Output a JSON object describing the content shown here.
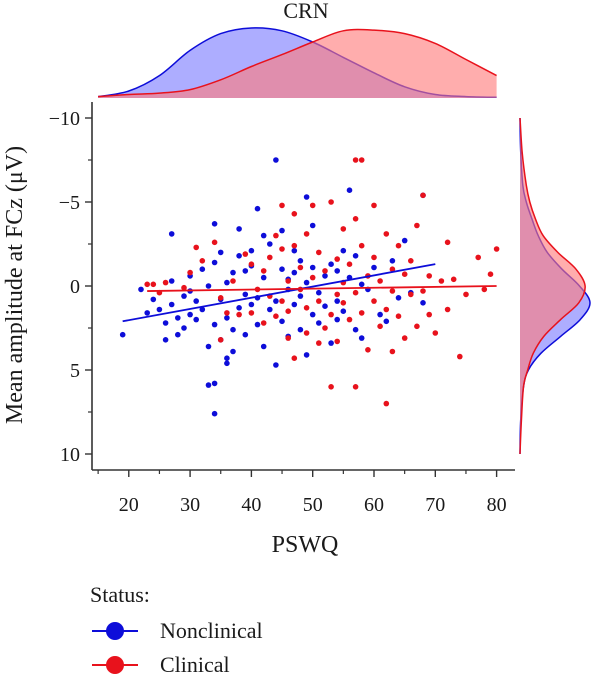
{
  "chart_data": {
    "type": "scatter",
    "title": "CRN",
    "xlabel": "PSWQ",
    "ylabel": "Mean amplitude at FCz (μV)",
    "xlim": [
      14,
      83
    ],
    "ylim": [
      10,
      -10
    ],
    "y_inverted": true,
    "xticks": [
      20,
      30,
      40,
      50,
      60,
      70,
      80
    ],
    "yticks": [
      -10,
      -5,
      0,
      5,
      10
    ],
    "series": [
      {
        "name": "Nonclinical",
        "color": "#0d0dd9",
        "fill": "#7a7aff",
        "points": [
          [
            19,
            2.9
          ],
          [
            22,
            0.2
          ],
          [
            23,
            1.6
          ],
          [
            24,
            0.8
          ],
          [
            25,
            1.4
          ],
          [
            26,
            3.2
          ],
          [
            26,
            2.2
          ],
          [
            27,
            -0.3
          ],
          [
            27,
            1.1
          ],
          [
            27,
            -3.1
          ],
          [
            28,
            1.9
          ],
          [
            28,
            2.9
          ],
          [
            29,
            0.6
          ],
          [
            29,
            2.5
          ],
          [
            30,
            0.3
          ],
          [
            30,
            1.7
          ],
          [
            30,
            -0.6
          ],
          [
            31,
            2.0
          ],
          [
            31,
            0.9
          ],
          [
            32,
            -1.0
          ],
          [
            32,
            1.4
          ],
          [
            33,
            0.0
          ],
          [
            33,
            3.6
          ],
          [
            33,
            5.9
          ],
          [
            34,
            5.8
          ],
          [
            34,
            7.6
          ],
          [
            34,
            2.3
          ],
          [
            34,
            -3.7
          ],
          [
            34,
            -1.4
          ],
          [
            35,
            0.8
          ],
          [
            35,
            -2.0
          ],
          [
            35,
            3.2
          ],
          [
            36,
            4.3
          ],
          [
            36,
            4.6
          ],
          [
            36,
            1.9
          ],
          [
            36,
            -0.2
          ],
          [
            37,
            2.6
          ],
          [
            37,
            -0.8
          ],
          [
            37,
            3.9
          ],
          [
            38,
            -3.4
          ],
          [
            38,
            1.3
          ],
          [
            38,
            -1.8
          ],
          [
            39,
            0.5
          ],
          [
            39,
            2.9
          ],
          [
            39,
            -0.9
          ],
          [
            40,
            -2.1
          ],
          [
            40,
            1.1
          ],
          [
            40,
            -1.2
          ],
          [
            41,
            -4.6
          ],
          [
            41,
            0.7
          ],
          [
            41,
            2.3
          ],
          [
            42,
            -3.0
          ],
          [
            42,
            -0.5
          ],
          [
            42,
            3.6
          ],
          [
            43,
            1.4
          ],
          [
            43,
            -2.5
          ],
          [
            44,
            -7.5
          ],
          [
            44,
            0.9
          ],
          [
            44,
            4.7
          ],
          [
            45,
            -1.0
          ],
          [
            45,
            2.1
          ],
          [
            45,
            -3.3
          ],
          [
            46,
            0.2
          ],
          [
            46,
            -0.4
          ],
          [
            46,
            3.0
          ],
          [
            47,
            1.1
          ],
          [
            47,
            -2.1
          ],
          [
            47,
            -0.8
          ],
          [
            48,
            -1.5
          ],
          [
            48,
            2.6
          ],
          [
            48,
            0.6
          ],
          [
            49,
            -5.3
          ],
          [
            49,
            -0.2
          ],
          [
            49,
            4.1
          ],
          [
            50,
            1.7
          ],
          [
            50,
            -1.1
          ],
          [
            50,
            -3.6
          ],
          [
            51,
            2.2
          ],
          [
            51,
            0.4
          ],
          [
            52,
            -0.6
          ],
          [
            52,
            1.2
          ],
          [
            53,
            -1.3
          ],
          [
            53,
            3.4
          ],
          [
            54,
            2.0
          ],
          [
            54,
            -0.9
          ],
          [
            54,
            0.9
          ],
          [
            55,
            -2.1
          ],
          [
            55,
            1.5
          ],
          [
            56,
            -5.7
          ],
          [
            56,
            -0.5
          ],
          [
            57,
            -1.8
          ],
          [
            57,
            2.6
          ],
          [
            58,
            -0.1
          ],
          [
            58,
            3.1
          ],
          [
            59,
            0.2
          ],
          [
            60,
            -1.1
          ],
          [
            61,
            1.7
          ],
          [
            62,
            2.1
          ],
          [
            63,
            -1.5
          ],
          [
            64,
            0.7
          ],
          [
            65,
            -2.7
          ],
          [
            66,
            0.4
          ],
          [
            68,
            -5.4
          ],
          [
            68,
            1.0
          ]
        ],
        "trend": [
          [
            19,
            2.1
          ],
          [
            70,
            -1.3
          ]
        ]
      },
      {
        "name": "Clinical",
        "color": "#e8121c",
        "fill": "#ff7b7b",
        "points": [
          [
            23,
            -0.1
          ],
          [
            24,
            -0.1
          ],
          [
            25,
            0.4
          ],
          [
            26,
            -0.2
          ],
          [
            29,
            0.1
          ],
          [
            30,
            -0.8
          ],
          [
            31,
            -2.3
          ],
          [
            32,
            -1.5
          ],
          [
            34,
            -2.6
          ],
          [
            35,
            0.7
          ],
          [
            35,
            3.2
          ],
          [
            36,
            1.6
          ],
          [
            37,
            -0.3
          ],
          [
            38,
            1.7
          ],
          [
            39,
            -1.9
          ],
          [
            40,
            -1.3
          ],
          [
            40,
            1.6
          ],
          [
            41,
            0.2
          ],
          [
            42,
            -0.9
          ],
          [
            42,
            2.2
          ],
          [
            43,
            0.6
          ],
          [
            43,
            -1.7
          ],
          [
            44,
            1.8
          ],
          [
            44,
            -3.0
          ],
          [
            45,
            0.9
          ],
          [
            45,
            -2.2
          ],
          [
            45,
            -4.8
          ],
          [
            46,
            1.5
          ],
          [
            46,
            -0.3
          ],
          [
            46,
            3.1
          ],
          [
            47,
            -2.4
          ],
          [
            47,
            -4.3
          ],
          [
            47,
            4.3
          ],
          [
            48,
            0.2
          ],
          [
            48,
            -1.1
          ],
          [
            49,
            1.3
          ],
          [
            49,
            -3.1
          ],
          [
            49,
            2.8
          ],
          [
            50,
            -0.5
          ],
          [
            50,
            -4.8
          ],
          [
            51,
            0.9
          ],
          [
            51,
            -2.0
          ],
          [
            51,
            3.4
          ],
          [
            52,
            -0.9
          ],
          [
            52,
            2.5
          ],
          [
            53,
            6.0
          ],
          [
            53,
            -5.0
          ],
          [
            53,
            1.7
          ],
          [
            54,
            -1.6
          ],
          [
            54,
            0.5
          ],
          [
            54,
            3.3
          ],
          [
            55,
            -3.4
          ],
          [
            55,
            1.0
          ],
          [
            55,
            -0.2
          ],
          [
            56,
            2.0
          ],
          [
            56,
            -1.3
          ],
          [
            57,
            0.4
          ],
          [
            57,
            -7.5
          ],
          [
            57,
            6.0
          ],
          [
            57,
            -4.0
          ],
          [
            58,
            -7.5
          ],
          [
            58,
            1.6
          ],
          [
            58,
            -2.4
          ],
          [
            59,
            -0.6
          ],
          [
            59,
            3.8
          ],
          [
            60,
            0.9
          ],
          [
            60,
            -4.8
          ],
          [
            60,
            -1.7
          ],
          [
            61,
            2.4
          ],
          [
            61,
            -0.3
          ],
          [
            62,
            7.0
          ],
          [
            62,
            1.4
          ],
          [
            62,
            -3.1
          ],
          [
            63,
            0.3
          ],
          [
            63,
            3.9
          ],
          [
            63,
            -1.0
          ],
          [
            64,
            -2.4
          ],
          [
            64,
            1.8
          ],
          [
            65,
            -0.7
          ],
          [
            65,
            3.1
          ],
          [
            66,
            0.5
          ],
          [
            66,
            -1.5
          ],
          [
            67,
            2.4
          ],
          [
            67,
            -3.6
          ],
          [
            68,
            0.3
          ],
          [
            68,
            -5.4
          ],
          [
            69,
            1.7
          ],
          [
            69,
            -0.6
          ],
          [
            70,
            2.8
          ],
          [
            71,
            -0.3
          ],
          [
            72,
            1.4
          ],
          [
            72,
            -2.6
          ],
          [
            73,
            -0.4
          ],
          [
            74,
            4.2
          ],
          [
            75,
            0.5
          ],
          [
            77,
            -1.7
          ],
          [
            78,
            0.2
          ],
          [
            79,
            -0.7
          ],
          [
            80,
            -2.2
          ]
        ],
        "trend": [
          [
            23,
            0.3
          ],
          [
            80,
            0.0
          ]
        ]
      }
    ],
    "marginal_top": [
      {
        "series": "Nonclinical",
        "x": [
          15,
          20,
          25,
          30,
          35,
          40,
          45,
          50,
          55,
          60,
          65,
          70,
          75,
          80
        ],
        "density": [
          0.02,
          0.1,
          0.32,
          0.68,
          0.92,
          1.0,
          0.96,
          0.8,
          0.58,
          0.36,
          0.16,
          0.05,
          0.02,
          0.01
        ]
      },
      {
        "series": "Clinical",
        "x": [
          15,
          20,
          25,
          30,
          35,
          40,
          45,
          50,
          55,
          60,
          65,
          70,
          75,
          80
        ],
        "density": [
          0.02,
          0.05,
          0.07,
          0.12,
          0.26,
          0.45,
          0.62,
          0.8,
          0.96,
          0.97,
          0.92,
          0.78,
          0.55,
          0.32
        ]
      }
    ],
    "marginal_right": [
      {
        "series": "Nonclinical",
        "y": [
          -10,
          -8,
          -6,
          -5,
          -4,
          -3,
          -2,
          -1,
          0,
          1,
          2,
          3,
          4,
          5,
          6,
          8,
          10
        ],
        "density": [
          0.0,
          0.01,
          0.04,
          0.09,
          0.17,
          0.26,
          0.39,
          0.6,
          0.85,
          1.0,
          0.86,
          0.58,
          0.3,
          0.12,
          0.05,
          0.01,
          0.0
        ]
      },
      {
        "series": "Clinical",
        "y": [
          -10,
          -8,
          -6,
          -5,
          -4,
          -3,
          -2,
          -1,
          0,
          1,
          2,
          3,
          4,
          5,
          6,
          8,
          10
        ],
        "density": [
          0.0,
          0.03,
          0.09,
          0.14,
          0.22,
          0.33,
          0.54,
          0.8,
          0.93,
          0.84,
          0.58,
          0.34,
          0.19,
          0.11,
          0.05,
          0.02,
          0.0
        ]
      }
    ]
  },
  "legend": {
    "title": "Status:",
    "items": [
      {
        "label": "Nonclinical",
        "color": "#0d0dd9"
      },
      {
        "label": "Clinical",
        "color": "#e8121c"
      }
    ]
  }
}
